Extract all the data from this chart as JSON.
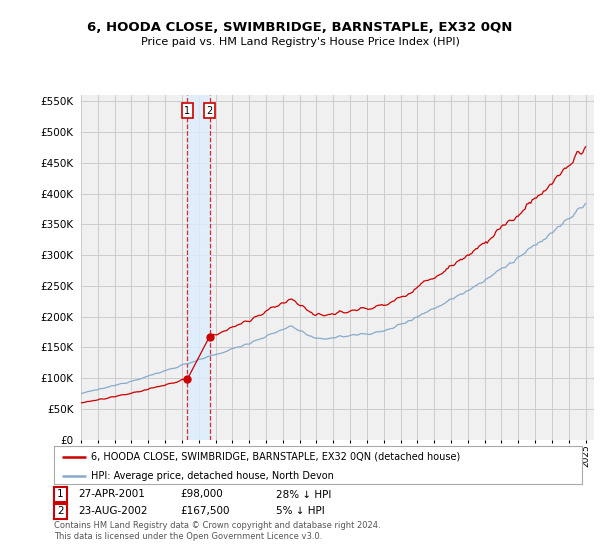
{
  "title": "6, HOODA CLOSE, SWIMBRIDGE, BARNSTAPLE, EX32 0QN",
  "subtitle": "Price paid vs. HM Land Registry's House Price Index (HPI)",
  "legend_line1": "6, HOODA CLOSE, SWIMBRIDGE, BARNSTAPLE, EX32 0QN (detached house)",
  "legend_line2": "HPI: Average price, detached house, North Devon",
  "footnote": "Contains HM Land Registry data © Crown copyright and database right 2024.\nThis data is licensed under the Open Government Licence v3.0.",
  "sale1_date": "27-APR-2001",
  "sale1_price": "£98,000",
  "sale1_hpi": "28% ↓ HPI",
  "sale1_year": 2001.32,
  "sale1_price_val": 98000,
  "sale2_date": "23-AUG-2002",
  "sale2_price": "£167,500",
  "sale2_hpi": "5% ↓ HPI",
  "sale2_year": 2002.64,
  "sale2_price_val": 167500,
  "ylim": [
    0,
    560000
  ],
  "xlim": [
    1995,
    2025.5
  ],
  "red_color": "#cc0000",
  "blue_color": "#88aacc",
  "shade_color": "#ddeeff",
  "grid_color": "#cccccc",
  "background_color": "#ffffff",
  "plot_bg_color": "#f0f0f0"
}
